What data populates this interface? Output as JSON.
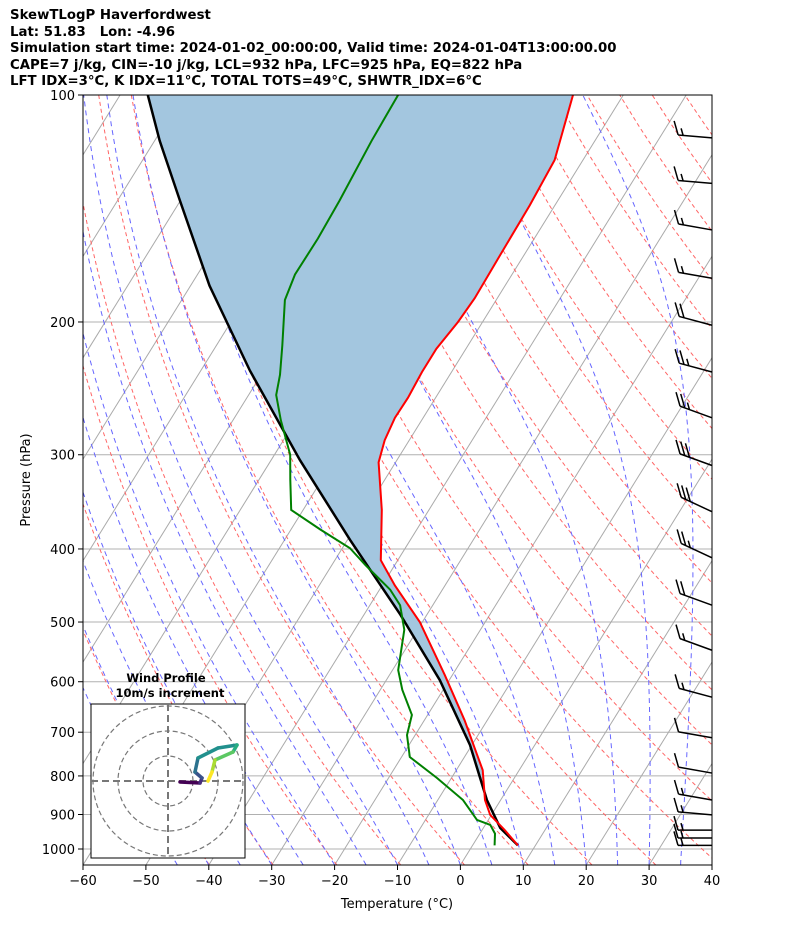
{
  "title": {
    "line1": "SkewTLogP Haverfordwest",
    "line2": "Lat: 51.83   Lon: -4.96",
    "line3": "Simulation start time: 2024-01-02_00:00:00, Valid time: 2024-01-04T13:00:00.00",
    "line4": "CAPE=7 j/kg, CIN=-10 j/kg, LCL=932 hPa, LFC=925 hPa, EQ=822 hPa",
    "line5": "LFT IDX=3°C, K IDX=11°C, TOTAL TOTS=49°C, SHWTR_IDX=6°C"
  },
  "colors": {
    "temperature": "#ff0000",
    "dewpoint": "#008000",
    "parcel": "#000000",
    "cape_fill": "#a3c6df",
    "isotherm": "#aaaaaa",
    "dry_adiabat": "#ff6666",
    "moist_adiabat": "#6666ff"
  },
  "chart_data": {
    "type": "line",
    "subtype": "skew-T log-P",
    "xlabel": "Temperature (°C)",
    "ylabel": "Pressure (hPa)",
    "xlim": [
      -60,
      40
    ],
    "ylim": [
      1050,
      100
    ],
    "xticks": [
      "−60",
      "−50",
      "−40",
      "−30",
      "−20",
      "−10",
      "0",
      "10",
      "20",
      "30",
      "40"
    ],
    "xtick_values": [
      -60,
      -50,
      -40,
      -30,
      -20,
      -10,
      0,
      10,
      20,
      30,
      40
    ],
    "yticks": [
      "100",
      "200",
      "300",
      "400",
      "500",
      "600",
      "700",
      "800",
      "900",
      "1000"
    ],
    "ytick_values": [
      100,
      200,
      300,
      400,
      500,
      600,
      700,
      800,
      900,
      1000
    ],
    "grid": true,
    "series": [
      {
        "name": "Temperature",
        "p": [
          100,
          122,
          140,
          163,
          186,
          200,
          217,
          233,
          252,
          268,
          287,
          307,
          355,
          414,
          447,
          500,
          588,
          675,
          750,
          786,
          861,
          901,
          944,
          989
        ],
        "T": [
          -58.0,
          -54.5,
          -54.0,
          -53.8,
          -53.6,
          -53.9,
          -54.7,
          -54.7,
          -54.4,
          -54.5,
          -53.9,
          -52.7,
          -47.5,
          -42.7,
          -38.0,
          -30.4,
          -21.2,
          -13.6,
          -8.2,
          -5.8,
          -2.5,
          -0.2,
          3.6,
          7.2
        ]
      },
      {
        "name": "Dewpoint",
        "p": [
          100,
          115,
          138,
          155,
          173,
          187,
          215,
          235,
          250,
          270,
          300,
          324,
          355,
          377,
          399,
          420,
          453,
          475,
          512,
          579,
          615,
          664,
          706,
          755,
          805,
          861,
          915,
          929,
          954,
          989
        ],
        "T": [
          -85.8,
          -85.5,
          -84.7,
          -84.4,
          -84.5,
          -83.6,
          -79.5,
          -77.0,
          -75.6,
          -72.4,
          -67.5,
          -65.0,
          -61.9,
          -55.3,
          -48.8,
          -44.7,
          -38.3,
          -35.2,
          -32.1,
          -29.1,
          -26.5,
          -22.5,
          -21.3,
          -18.7,
          -12.3,
          -6.0,
          -1.8,
          0.8,
          2.4,
          3.5
        ]
      },
      {
        "name": "Parcel",
        "p": [
          989,
          938,
          861,
          728,
          597,
          489,
          389,
          305,
          232,
          179,
          138,
          115,
          100
        ],
        "T": [
          7.2,
          2.7,
          -2.2,
          -10.3,
          -21.5,
          -34.2,
          -49.6,
          -65.4,
          -82.2,
          -97.0,
          -110.1,
          -119.2,
          -125.6
        ]
      }
    ],
    "wind_barbs": {
      "units": "kt",
      "p": [
        114,
        131,
        151,
        175,
        202,
        233,
        268,
        310,
        357,
        411,
        475,
        545,
        629,
        712,
        793,
        861,
        901,
        944,
        967,
        989
      ],
      "speed": [
        15,
        15,
        15,
        15,
        20,
        25,
        25,
        30,
        30,
        25,
        20,
        15,
        15,
        10,
        10,
        15,
        15,
        15,
        15,
        15
      ],
      "direction": [
        275,
        275,
        280,
        280,
        285,
        285,
        290,
        290,
        295,
        295,
        290,
        290,
        285,
        280,
        280,
        280,
        275,
        270,
        270,
        270
      ]
    },
    "hodograph": {
      "title": "Wind Profile",
      "subtitle": "10m/s increment",
      "rings_ms": [
        10,
        20,
        30
      ],
      "u": [
        4.8,
        12.8,
        13.6,
        10.8,
        12.0,
        20.0,
        27.6,
        26.0,
        18.8,
        17.6,
        16.0
      ],
      "v": [
        -0.4,
        -0.8,
        1.2,
        3.6,
        9.2,
        13.2,
        14.4,
        11.6,
        8.4,
        3.6,
        0.0
      ]
    }
  }
}
